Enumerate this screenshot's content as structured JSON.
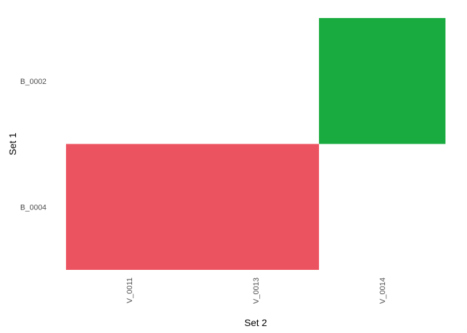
{
  "chart_data": {
    "type": "heatmap",
    "title": "",
    "xlabel": "Set 2",
    "ylabel": "Set 1",
    "x_categories": [
      "V_0011",
      "V_0013",
      "V_0014"
    ],
    "y_categories": [
      "B_0002",
      "B_0004"
    ],
    "cells": [
      {
        "x_from": "V_0014",
        "x_to": "V_0014",
        "y": "B_0002",
        "color": "#1aab40"
      },
      {
        "x_from": "V_0011",
        "x_to": "V_0013",
        "y": "B_0004",
        "color": "#ec5360"
      }
    ],
    "grid": false,
    "legend": "none"
  }
}
